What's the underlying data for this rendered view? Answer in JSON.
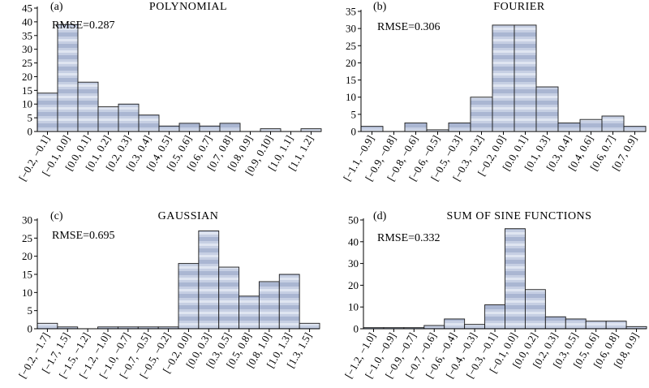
{
  "colors": {
    "bar_fill_light": "#e3e8f3",
    "bar_fill_dark": "#9aa8c8",
    "bar_stroke": "#1a1a1a",
    "axis": "#000000"
  },
  "chart_data": [
    {
      "type": "bar",
      "panel": "(a)",
      "title": "POLYNOMIAL",
      "annotation": "RMSE=0.287",
      "categories": [
        "[−0.2, −0.1]",
        "[−0.1, 0.0]",
        "[0.0, 0.1]",
        "[0.1, 0.2]",
        "[0.2, 0.3]",
        "[0.3, 0.4]",
        "[0.4, 0.5]",
        "[0.5, 0.6]",
        "[0.6, 0.7]",
        "[0.7, 0.8]",
        "[0.8, 0.9]",
        "[0.9, 0.10]",
        "[1.0, 1.1]",
        "[1.1, 1.2]"
      ],
      "values": [
        14,
        39,
        18,
        9,
        10,
        6,
        2,
        3,
        2,
        3,
        0,
        1,
        0,
        1
      ],
      "yticks": [
        0,
        5,
        10,
        15,
        20,
        25,
        30,
        35,
        40,
        45
      ],
      "ylim": [
        0,
        45
      ]
    },
    {
      "type": "bar",
      "panel": "(b)",
      "title": "FOURIER",
      "annotation": "RMSE=0.306",
      "categories": [
        "[−1.1, −0.9]",
        "[−0.9, −0.8]",
        "[−0.8, −0.6]",
        "[−0.6, −0.5]",
        "[−0.5, −0.3]",
        "[−0.3, −0.2]",
        "[−0.2, 0.0]",
        "[0.0, 0.1]",
        "[0.1, 0.3]",
        "[0.3, 0.4]",
        "[0.4, 0.6]",
        "[0.6, 0.7]",
        "[0.7, 0.9]"
      ],
      "values": [
        1.5,
        0,
        2.5,
        0.5,
        2.5,
        10,
        31,
        31,
        13,
        2.5,
        3.5,
        4.5,
        1.5
      ],
      "yticks": [
        0,
        5,
        10,
        15,
        20,
        25,
        30,
        35
      ],
      "ylim": [
        0,
        35
      ]
    },
    {
      "type": "bar",
      "panel": "(c)",
      "title": "GAUSSIAN",
      "annotation": "RMSE=0.695",
      "categories": [
        "[−0.2, −1.7]",
        "[−1.7, 1.5]",
        "[−1.5, −1.2]",
        "[−1.2, −1.0]",
        "[−1.0, −0.7]",
        "[−0.7, −0.5]",
        "[−0.5, −0.2]",
        "[−0.2, 0.0]",
        "[0.0, 0.3]",
        "[0.3, 0.5]",
        "[0.5, 0.8]",
        "[0.8, 1.0]",
        "[1.0, 1.3]",
        "[1.3, 1.5]"
      ],
      "values": [
        1.5,
        0.5,
        0,
        0.5,
        0.5,
        0.5,
        0.5,
        18,
        27,
        17,
        9,
        13,
        15,
        1.5
      ],
      "yticks": [
        0,
        5,
        10,
        15,
        20,
        25,
        30
      ],
      "ylim": [
        0,
        30
      ]
    },
    {
      "type": "bar",
      "panel": "(d)",
      "title": "SUM OF SINE FUNCTIONS",
      "annotation": "RMSE=0.332",
      "categories": [
        "[−1.2, −1.0]",
        "[−1.0, −0.9]",
        "[−0.9, −0.7]",
        "[−0.7, −0.6]",
        "[−0.6, −0.4]",
        "[−0.4, −0.3]",
        "[−0.3, −0.1]",
        "[−0.1, 0.0]",
        "[0.0, 0.2]",
        "[0.2, 0.3]",
        "[0.3, 0.5]",
        "[0.5, 0.6]",
        "[0.6, 0.8]",
        "[0.8, 0.9]"
      ],
      "values": [
        0.5,
        0.5,
        0.5,
        1.5,
        4.5,
        2,
        11,
        46,
        18,
        5.5,
        4.5,
        3.5,
        3.5,
        1
      ],
      "yticks": [
        0,
        10,
        20,
        30,
        40,
        50
      ],
      "ylim": [
        0,
        50
      ]
    }
  ]
}
